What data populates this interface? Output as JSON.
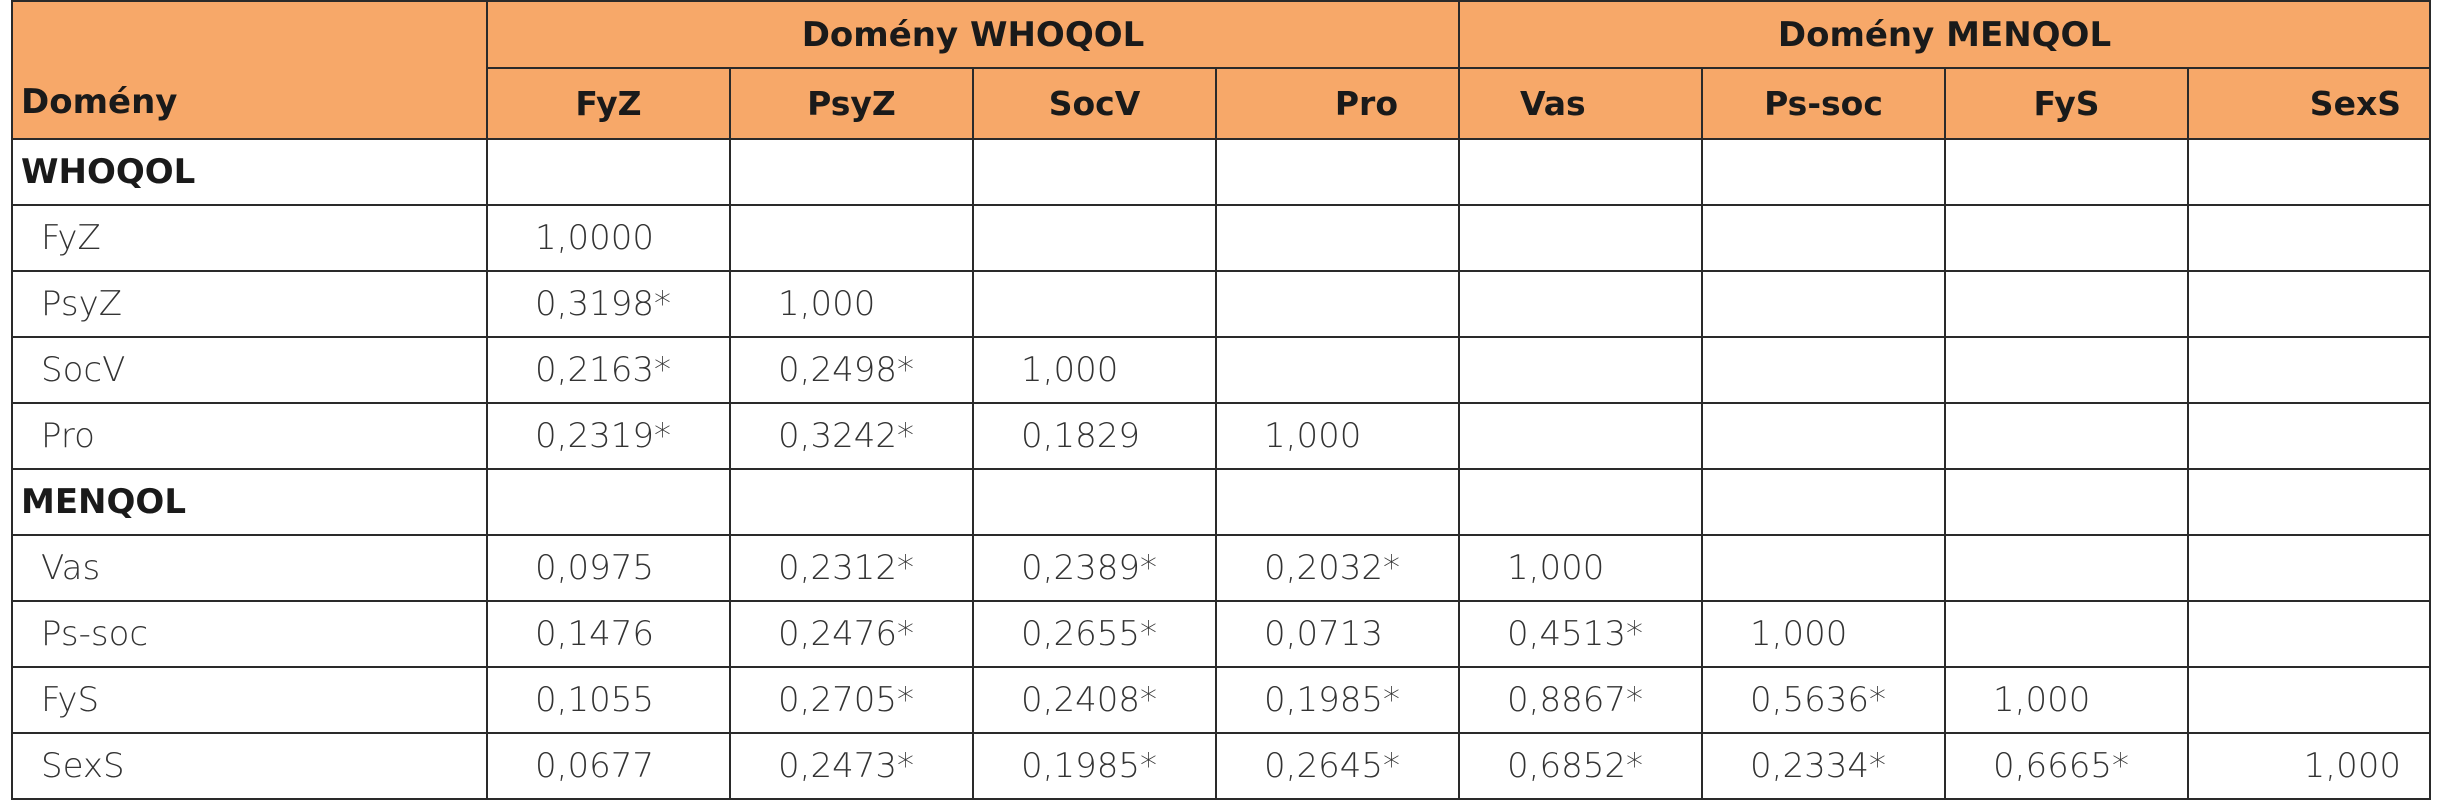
{
  "table": {
    "corner_label": "Domény",
    "group_headers": {
      "whoqol": "Domény WHOQOL",
      "menqol": "Domény MENQOL"
    },
    "sub_headers": [
      "FyZ",
      "PsyZ",
      "SocV",
      "Pro",
      "Vas",
      "Ps-soc",
      "FyS",
      "SexS"
    ],
    "sections": [
      {
        "title": "WHOQOL",
        "rows": [
          {
            "label": "FyZ",
            "cells": [
              "1,0000",
              "",
              "",
              "",
              "",
              "",
              "",
              ""
            ]
          },
          {
            "label": "PsyZ",
            "cells": [
              "0,3198*",
              "1,000",
              "",
              "",
              "",
              "",
              "",
              ""
            ]
          },
          {
            "label": "SocV",
            "cells": [
              "0,2163*",
              "0,2498*",
              "1,000",
              "",
              "",
              "",
              "",
              ""
            ]
          },
          {
            "label": "Pro",
            "cells": [
              "0,2319*",
              "0,3242*",
              "0,1829",
              "1,000",
              "",
              "",
              "",
              ""
            ]
          }
        ]
      },
      {
        "title": "MENQOL",
        "rows": [
          {
            "label": "Vas",
            "cells": [
              "0,0975",
              "0,2312*",
              "0,2389*",
              "0,2032*",
              "1,000",
              "",
              "",
              ""
            ]
          },
          {
            "label": "Ps-soc",
            "cells": [
              "0,1476",
              "0,2476*",
              "0,2655*",
              "0,0713",
              "0,4513*",
              "1,000",
              "",
              ""
            ]
          },
          {
            "label": "FyS",
            "cells": [
              "0,1055",
              "0,2705*",
              "0,2408*",
              "0,1985*",
              "0,8867*",
              "0,5636*",
              "1,000",
              ""
            ]
          },
          {
            "label": "SexS",
            "cells": [
              "0,0677",
              "0,2473*",
              "0,1985*",
              "0,2645*",
              "0,6852*",
              "0,2334*",
              "0,6665*",
              "1,000"
            ]
          }
        ]
      }
    ]
  }
}
